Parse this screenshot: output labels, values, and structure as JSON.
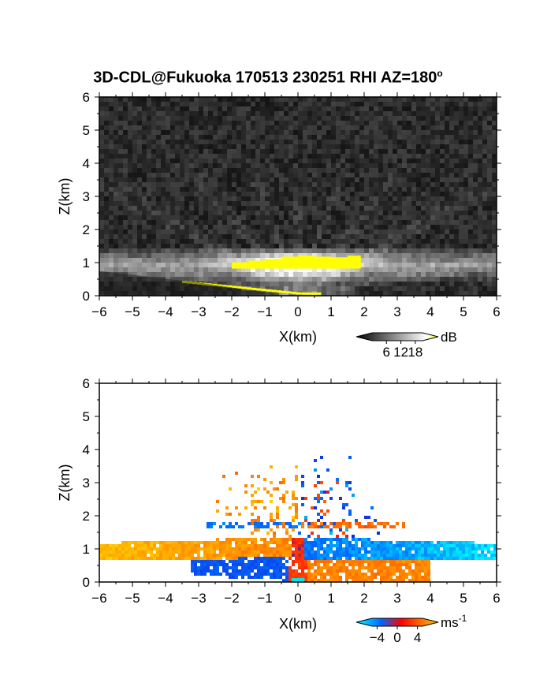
{
  "figure": {
    "title_text": "3D-CDL@Fukuoka 170513 230251 RHI AZ=180",
    "title_degree": "o"
  },
  "chart_data": [
    {
      "type": "heatmap",
      "name": "reflectivity",
      "xlabel": "X(km)",
      "ylabel": "Z(km)",
      "xlim": [
        -6,
        6
      ],
      "ylim": [
        0,
        6
      ],
      "xticks": [
        "-6",
        "-5",
        "-4",
        "-3",
        "-2",
        "-1",
        "0",
        "1",
        "2",
        "3",
        "4",
        "5",
        "6"
      ],
      "yticks": [
        "0",
        "1",
        "2",
        "3",
        "4",
        "5",
        "6"
      ],
      "colorbar": {
        "unit": "dB",
        "ticks": [
          "6",
          "12",
          "18"
        ],
        "range": [
          0,
          21
        ],
        "colors": [
          "#000000",
          "#ffffff",
          "#ffff00"
        ]
      },
      "features": {
        "layer_top_km": 1.3,
        "layer_bottom_km": 0.55,
        "bright_core_center_x_km": 0.0,
        "noise_level_db": "low"
      }
    },
    {
      "type": "heatmap",
      "name": "doppler_velocity",
      "xlabel": "X(km)",
      "ylabel": "Z(km)",
      "xlim": [
        -6,
        6
      ],
      "ylim": [
        0,
        6
      ],
      "xticks": [
        "-6",
        "-5",
        "-4",
        "-3",
        "-2",
        "-1",
        "0",
        "1",
        "2",
        "3",
        "4",
        "5",
        "6"
      ],
      "yticks": [
        "0",
        "1",
        "2",
        "3",
        "4",
        "5",
        "6"
      ],
      "colorbar": {
        "unit": "ms",
        "unit_exp": "-1",
        "ticks": [
          "-4",
          "0",
          "4"
        ],
        "range": [
          -5,
          5
        ],
        "colors": [
          "#00ffff",
          "#0066ff",
          "#ff0000",
          "#ffcc00"
        ]
      },
      "features": {
        "velocity_left_ms": 4.5,
        "velocity_right_ms": -3.0,
        "velocity_lower_left_ms": -2.0,
        "velocity_lower_right_ms": 3.0
      }
    }
  ]
}
